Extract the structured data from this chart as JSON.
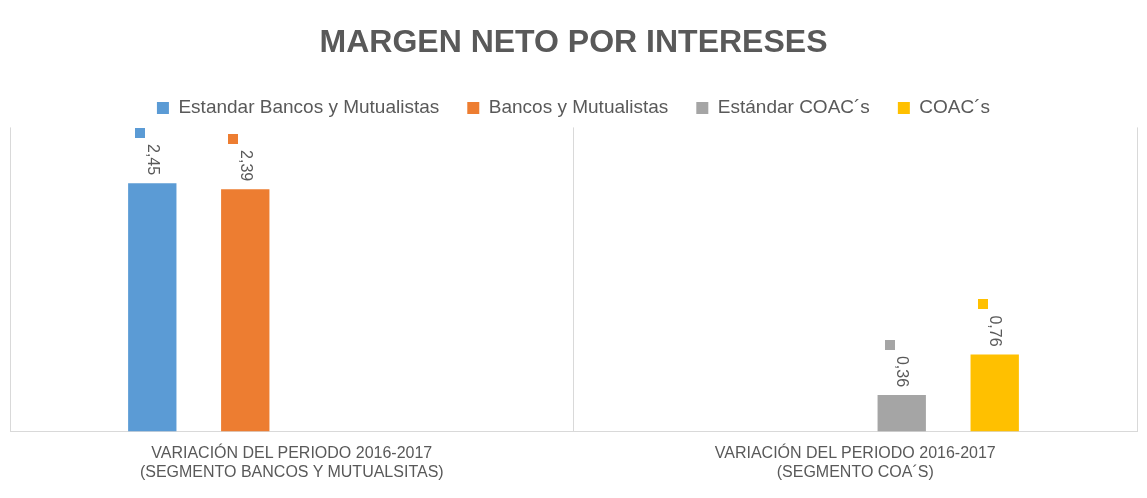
{
  "chart_data": {
    "type": "bar",
    "title": "MARGEN NETO POR INTERESES",
    "categories": [
      "VARIACIÓN DEL PERIODO 2016-2017 (SEGMENTO BANCOS Y MUTUALSITAS)",
      "VARIACIÓN DEL PERIODO 2016-2017 (SEGMENTO COA´S)"
    ],
    "series": [
      {
        "name": "Estandar Bancos y Mutualistas",
        "color": "#5b9bd5",
        "values": [
          2.45,
          null
        ],
        "value_labels": [
          "2,45",
          null
        ]
      },
      {
        "name": "Bancos y Mutualistas",
        "color": "#ed7d31",
        "values": [
          2.39,
          null
        ],
        "value_labels": [
          "2,39",
          null
        ]
      },
      {
        "name": "Estándar COAC´s",
        "color": "#a5a5a5",
        "values": [
          null,
          0.36
        ],
        "value_labels": [
          null,
          "0,36"
        ]
      },
      {
        "name": "COAC´s",
        "color": "#ffc000",
        "values": [
          null,
          0.76
        ],
        "value_labels": [
          null,
          "0,76"
        ]
      }
    ],
    "legend": "top",
    "grid": "x"
  }
}
